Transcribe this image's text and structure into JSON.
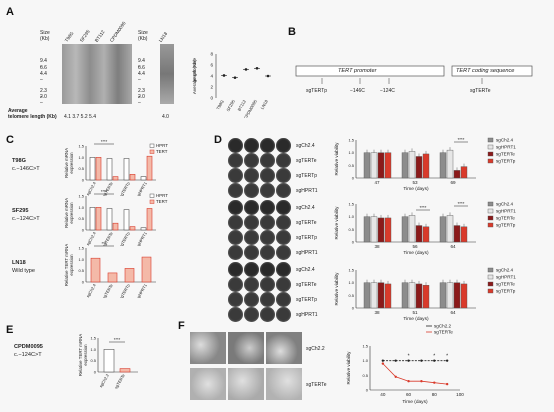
{
  "panels": {
    "A": {
      "letter": "A",
      "size_label": "Size\n(Kb)",
      "size_ticks": [
        "9.4",
        "6.6",
        "4.4",
        "2.3",
        "2.0"
      ],
      "lanes": [
        "T98G",
        "SF295",
        "BT112",
        "CPDM0095"
      ],
      "lane_ln18": "LN18",
      "avg_label": "Average\ntelomere length (Kb)",
      "avg_values": "4.1 3.7 5.2 5.4",
      "avg_ln18": "4.0",
      "scatter_ylabel": "Average telomere\nlength (Kb)",
      "scatter_yticks": [
        "8",
        "6",
        "4",
        "2",
        "0"
      ],
      "scatter_xlabels": [
        "T98G",
        "SF295",
        "BT112",
        "CPDM0095",
        "LN18"
      ]
    },
    "B": {
      "letter": "B",
      "promoter": "TERT promoter",
      "coding": "TERT coding sequence",
      "sgTERTp": "sgTERTp",
      "m146": "−146C",
      "m124": "−124C",
      "sgTERTe": "sgTERTe"
    },
    "C": {
      "letter": "C",
      "rows": [
        {
          "line": "T98G",
          "mut": "c.−146C>T",
          "legend": [
            "HPRT",
            "TERT"
          ],
          "ylabel": "Relative mRNA\nexpression",
          "xlabels": [
            "sgCh2.4",
            "sgTERTe",
            "sgTERTp",
            "sgHPRT1"
          ]
        },
        {
          "line": "SF295",
          "mut": "c.−124C>T",
          "legend": [
            "HPRT",
            "TERT"
          ],
          "ylabel": "Relative mRNA\nexpression",
          "xlabels": [
            "sgCh2.4",
            "sgTERTe",
            "sgTERTp",
            "sgHPRT1"
          ]
        },
        {
          "line": "LN18",
          "mut": "Wild type",
          "legend": [],
          "ylabel": "Relative TERT mRNA\nexpression",
          "xlabels": [
            "sgCh2.4",
            "sgTERTe",
            "sgTERTp",
            "sgHPRT1"
          ]
        }
      ],
      "sig": "****",
      "sig3": "***"
    },
    "D": {
      "letter": "D",
      "plates": [
        [
          "sgCh2.4",
          "sgTERTe",
          "sgTERTp",
          "sgHPRT1"
        ],
        [
          "sgCh2.4",
          "sgTERTe",
          "sgTERTp",
          "sgHPRT1"
        ],
        [
          "sgCh2.4",
          "sgTERTe",
          "sgTERTp",
          "sgHPRT1"
        ]
      ],
      "legend": [
        "sgCh2.4",
        "sgHPRT1",
        "sgTERTe",
        "sgTERTp"
      ],
      "ylabel": "Relative viability",
      "xlabel": "Time (days)",
      "yticks": [
        "1.5",
        "1.0",
        "0.5",
        "0"
      ],
      "timepoints": [
        [
          "47",
          "53",
          "69"
        ],
        [
          "38",
          "56",
          "64"
        ],
        [
          "38",
          "51",
          "64"
        ]
      ],
      "sig": "****"
    },
    "E": {
      "letter": "E",
      "line": "CPDM0095",
      "mut": "c.−124C>T",
      "ylabel": "Relative TERT mRNA\nexpression",
      "yticks": [
        "1.5",
        "1.0",
        "0.5",
        "0"
      ],
      "xlabels": [
        "sgCh2.2",
        "sgTERTe"
      ],
      "sig": "****"
    },
    "F": {
      "letter": "F",
      "rows": [
        "sgCh2.2",
        "sgTERTe"
      ],
      "legend": [
        "sgCh2.2",
        "sgTERTe"
      ],
      "ylabel": "Relative viability",
      "xlabel": "Time (days)",
      "xticks": [
        "40",
        "60",
        "80",
        "100"
      ],
      "yticks": [
        "1.5",
        "1.0",
        "0.5",
        "0"
      ],
      "sig": "*"
    }
  },
  "colors": {
    "grey": "#8c8c8c",
    "light": "#e6e6e6",
    "red": "#d93a2b",
    "darkred": "#8b1a1a",
    "pink": "#f4b9a8"
  },
  "chart_data": [
    {
      "type": "scatter",
      "panel": "A",
      "categories": [
        "T98G",
        "SF295",
        "BT112",
        "CPDM0095",
        "LN18"
      ],
      "values": [
        4.1,
        3.7,
        5.2,
        5.4,
        4.0
      ],
      "ylabel": "Average telomere length (Kb)",
      "ylim": [
        0,
        8
      ]
    },
    {
      "type": "bar",
      "panel": "C-T98G",
      "categories": [
        "sgCh2.4",
        "sgTERTe",
        "sgTERTp",
        "sgHPRT1"
      ],
      "series": [
        {
          "name": "HPRT",
          "values": [
            1.0,
            0.95,
            0.95,
            0.15
          ]
        },
        {
          "name": "TERT",
          "values": [
            1.0,
            0.15,
            0.25,
            1.05
          ]
        }
      ],
      "ylim": [
        0,
        1.5
      ]
    },
    {
      "type": "bar",
      "panel": "C-SF295",
      "categories": [
        "sgCh2.4",
        "sgTERTe",
        "sgTERTp",
        "sgHPRT1"
      ],
      "series": [
        {
          "name": "HPRT",
          "values": [
            1.0,
            0.95,
            0.9,
            0.1
          ]
        },
        {
          "name": "TERT",
          "values": [
            1.0,
            0.3,
            0.15,
            0.95
          ]
        }
      ],
      "ylim": [
        0,
        1.5
      ]
    },
    {
      "type": "bar",
      "panel": "C-LN18",
      "categories": [
        "sgCh2.4",
        "sgTERTe",
        "sgTERTp",
        "sgHPRT1"
      ],
      "values": [
        1.05,
        0.4,
        0.6,
        1.1
      ],
      "ylim": [
        0,
        1.5
      ]
    },
    {
      "type": "bar",
      "panel": "D-1",
      "categories": [
        "47",
        "53",
        "69"
      ],
      "series": [
        {
          "name": "sgCh2.4",
          "values": [
            1.0,
            1.0,
            1.0
          ]
        },
        {
          "name": "sgHPRT1",
          "values": [
            1.0,
            1.05,
            1.1
          ]
        },
        {
          "name": "sgTERTe",
          "values": [
            1.0,
            0.85,
            0.3
          ]
        },
        {
          "name": "sgTERTp",
          "values": [
            1.0,
            0.95,
            0.45
          ]
        }
      ],
      "xlabel": "Time (days)",
      "ylabel": "Relative viability",
      "ylim": [
        0,
        1.5
      ]
    },
    {
      "type": "bar",
      "panel": "D-2",
      "categories": [
        "38",
        "56",
        "64"
      ],
      "series": [
        {
          "name": "sgCh2.4",
          "values": [
            1.0,
            1.0,
            1.0
          ]
        },
        {
          "name": "sgHPRT1",
          "values": [
            1.0,
            1.05,
            1.05
          ]
        },
        {
          "name": "sgTERTe",
          "values": [
            0.95,
            0.65,
            0.65
          ]
        },
        {
          "name": "sgTERTp",
          "values": [
            0.95,
            0.6,
            0.6
          ]
        }
      ],
      "xlabel": "Time (days)",
      "ylabel": "Relative viability",
      "ylim": [
        0,
        1.5
      ]
    },
    {
      "type": "bar",
      "panel": "D-3",
      "categories": [
        "38",
        "51",
        "64"
      ],
      "series": [
        {
          "name": "sgCh2.4",
          "values": [
            1.0,
            1.0,
            1.0
          ]
        },
        {
          "name": "sgHPRT1",
          "values": [
            1.0,
            1.0,
            1.0
          ]
        },
        {
          "name": "sgTERTe",
          "values": [
            1.0,
            0.95,
            1.0
          ]
        },
        {
          "name": "sgTERTp",
          "values": [
            0.95,
            0.9,
            0.95
          ]
        }
      ],
      "xlabel": "Time (days)",
      "ylabel": "Relative viability",
      "ylim": [
        0,
        1.5
      ]
    },
    {
      "type": "bar",
      "panel": "E",
      "categories": [
        "sgCh2.2",
        "sgTERTe"
      ],
      "values": [
        1.0,
        0.15
      ],
      "ylabel": "Relative TERT mRNA expression",
      "ylim": [
        0,
        1.5
      ]
    },
    {
      "type": "line",
      "panel": "F",
      "series": [
        {
          "name": "sgCh2.2",
          "x": [
            40,
            50,
            60,
            70,
            80,
            90
          ],
          "y": [
            1.0,
            1.0,
            1.0,
            1.0,
            1.0,
            1.0
          ]
        },
        {
          "name": "sgTERTe",
          "x": [
            40,
            50,
            60,
            70,
            80,
            90
          ],
          "y": [
            0.9,
            0.45,
            0.3,
            0.3,
            0.25,
            0.2
          ]
        }
      ],
      "xlabel": "Time (days)",
      "ylabel": "Relative viability",
      "ylim": [
        0,
        1.5
      ]
    }
  ]
}
